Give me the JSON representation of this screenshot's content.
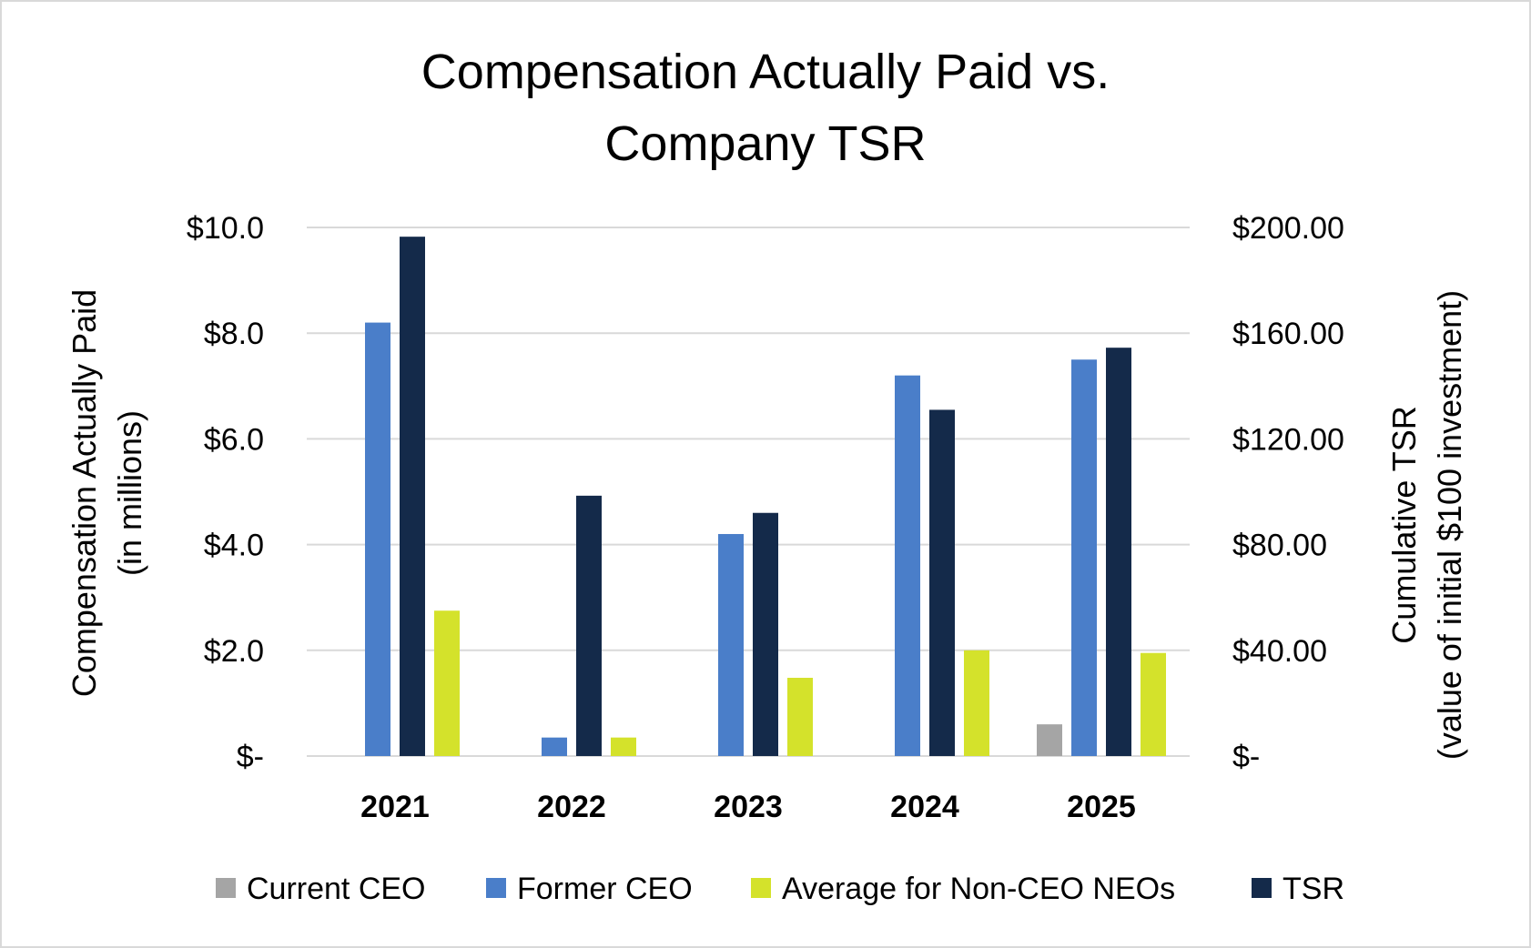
{
  "chart_data": {
    "type": "bar",
    "title_line1": "Compensation Actually Paid vs.",
    "title_line2": "Company TSR",
    "ylabel_left_line1": "Compensation Actually Paid",
    "ylabel_left_line2": "(in millions)",
    "ylabel_right_line1": "Cumulative TSR",
    "ylabel_right_line2": "(value of initial $100 investment)",
    "categories": [
      "2021",
      "2022",
      "2023",
      "2024",
      "2025"
    ],
    "ylim_left": [
      0,
      10
    ],
    "ylim_right": [
      0,
      200
    ],
    "y_ticks_left": [
      "$-",
      "$2.0",
      "$4.0",
      "$6.0",
      "$8.0",
      "$10.0"
    ],
    "y_ticks_right": [
      "$-",
      "$40.00",
      "$80.00",
      "$120.00",
      "$160.00",
      "$200.00"
    ],
    "grid": true,
    "legend_position": "bottom",
    "series": [
      {
        "name": "Current CEO",
        "axis": "left",
        "color": "#a5a5a5",
        "values": [
          null,
          null,
          null,
          null,
          0.6
        ]
      },
      {
        "name": "Former CEO",
        "axis": "left",
        "color": "#4a7ec9",
        "values": [
          8.2,
          0.35,
          4.2,
          7.2,
          7.5
        ]
      },
      {
        "name": "TSR",
        "axis": "right",
        "color": "#142a4a",
        "values": [
          196.5,
          98.5,
          92.0,
          131.0,
          154.5
        ]
      },
      {
        "name": "Average for Non-CEO NEOs",
        "axis": "left",
        "color": "#d4e22b",
        "values": [
          2.75,
          0.35,
          1.48,
          2.0,
          1.95
        ]
      }
    ],
    "legend_order": [
      "Current CEO",
      "Former CEO",
      "Average for Non-CEO NEOs",
      "TSR"
    ]
  }
}
